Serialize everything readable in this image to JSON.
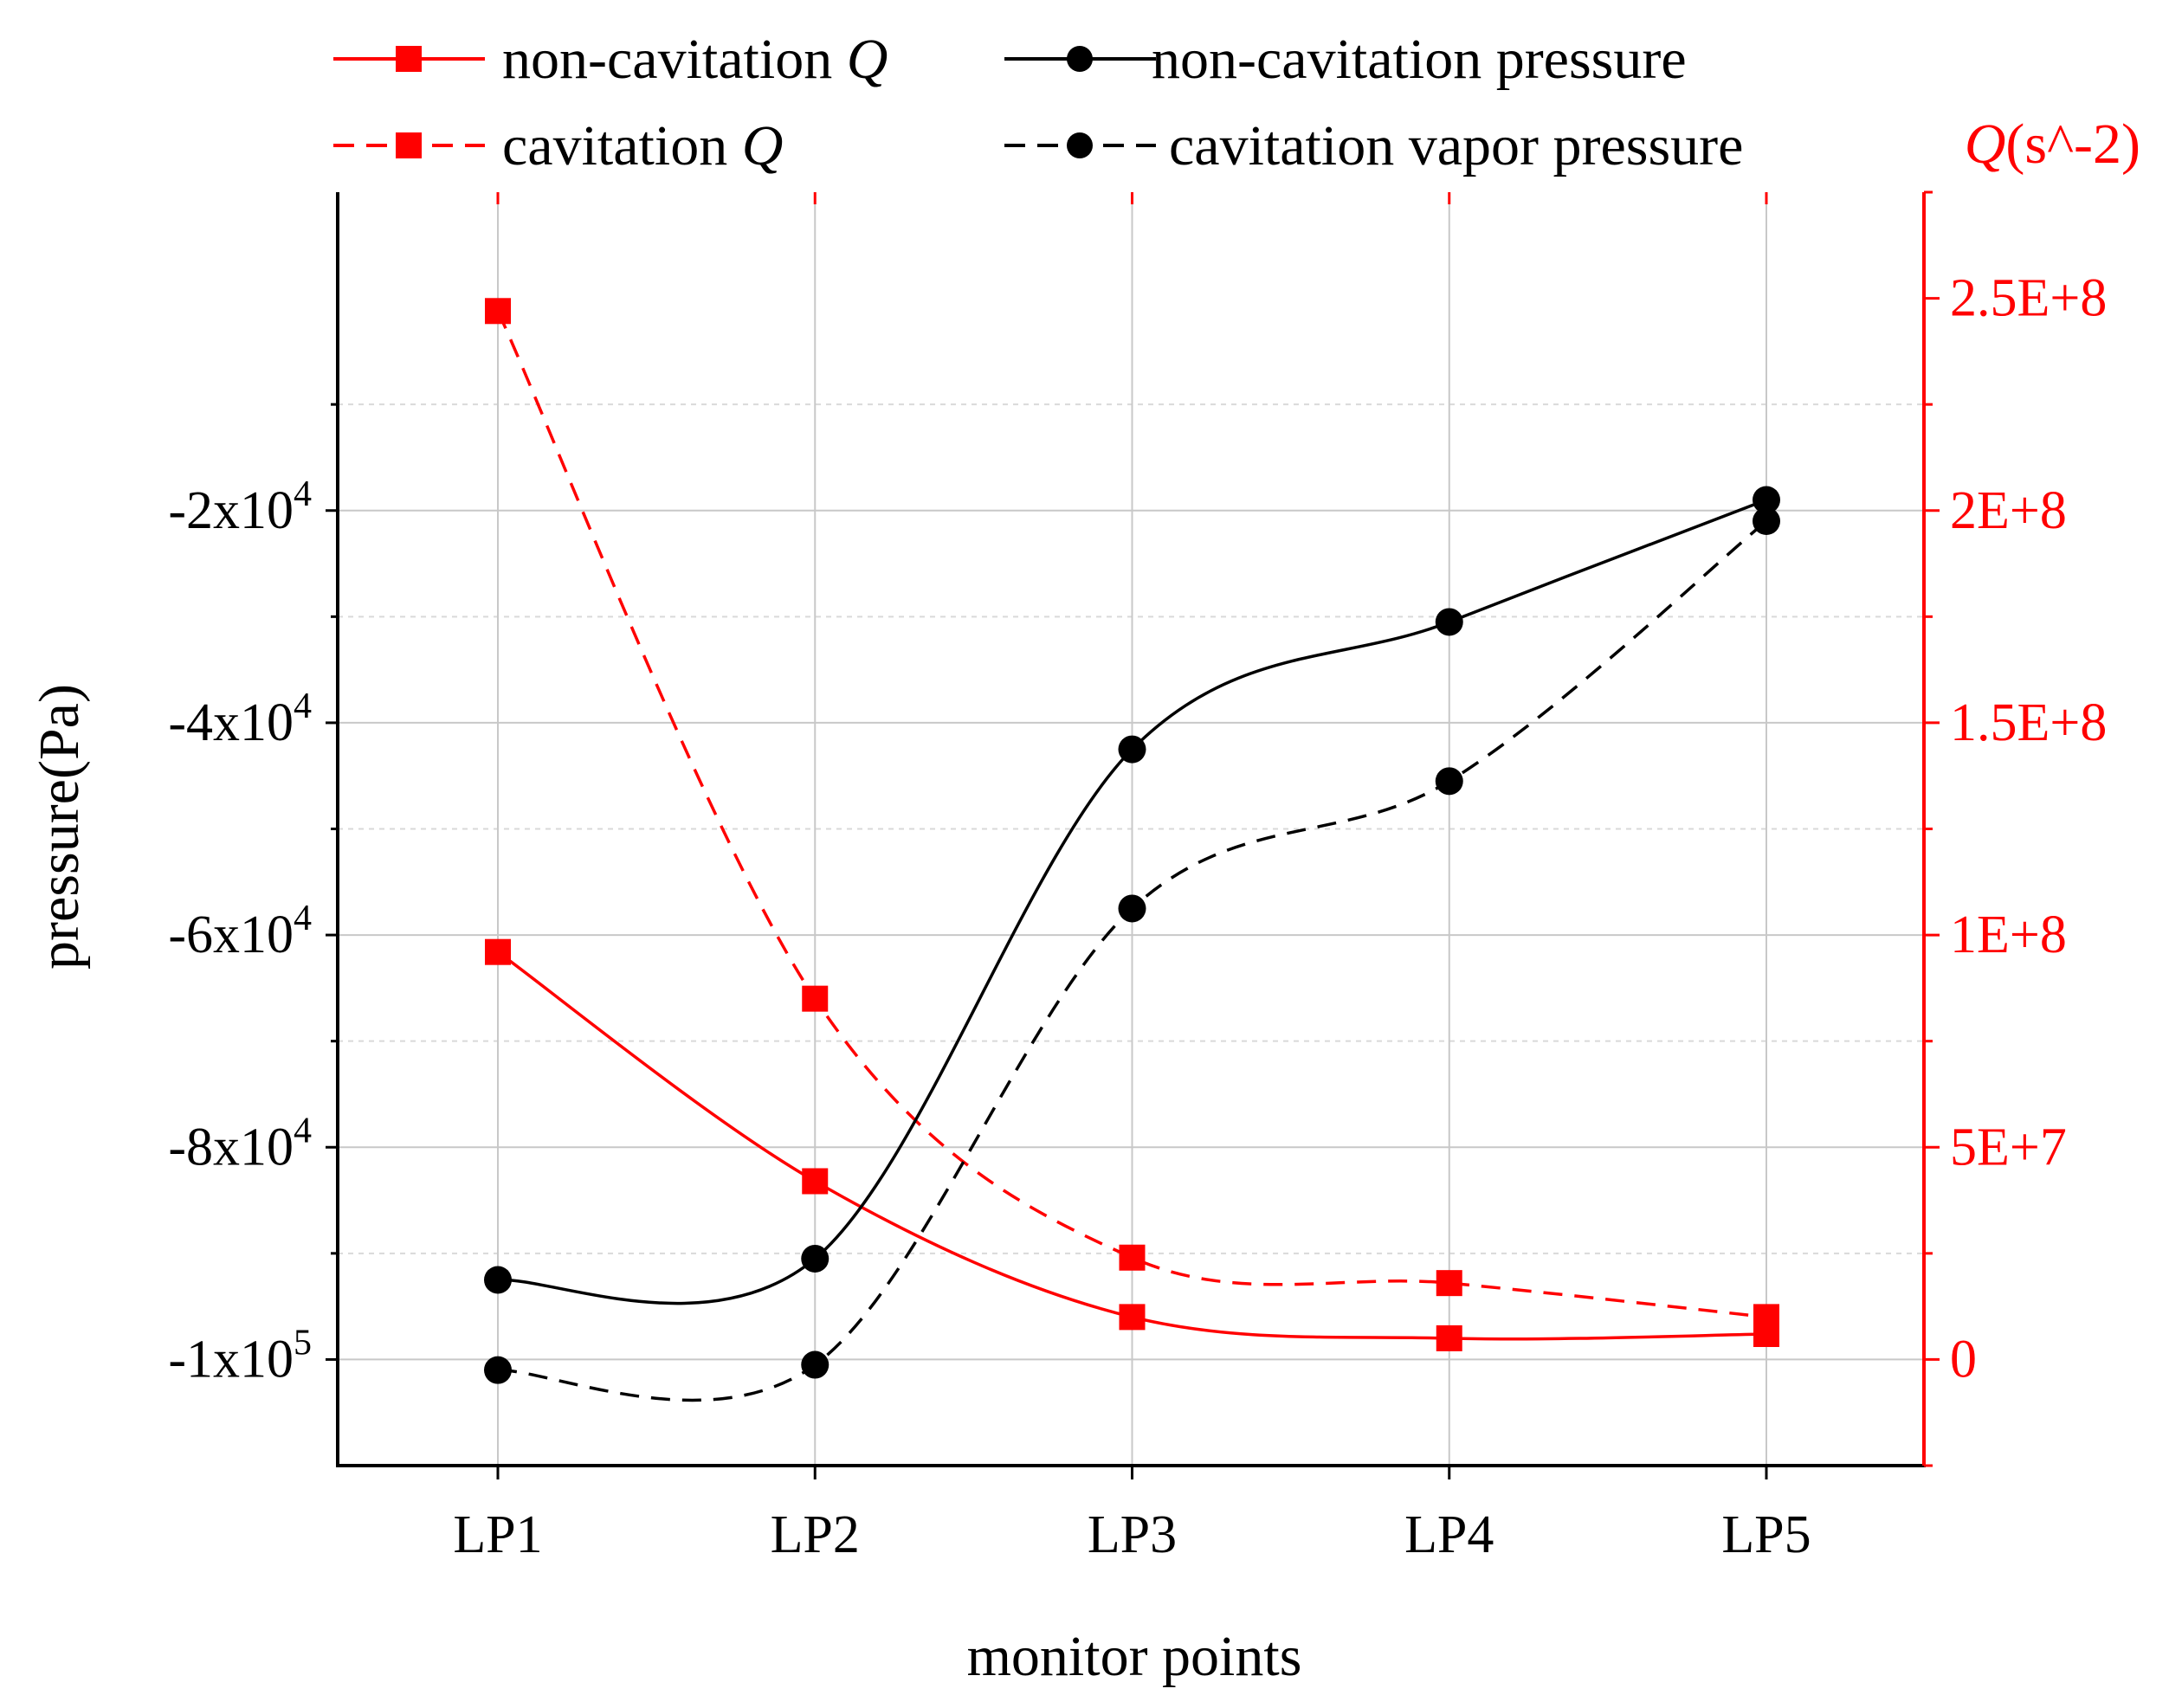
{
  "chart_data": {
    "type": "line",
    "categories": [
      "LP1",
      "LP2",
      "LP3",
      "LP4",
      "LP5"
    ],
    "xlabel": "monitor points",
    "ylabel": "pressure(Pa)",
    "y2label_symbol": "Q",
    "y2label_unit": "(s^-2)",
    "ylim": [
      -110000,
      10000
    ],
    "y2lim": [
      -25000000,
      275000000
    ],
    "grid": true,
    "yticks": [
      {
        "value": -20000,
        "mantissa": "-2x10",
        "exp": "4"
      },
      {
        "value": -40000,
        "mantissa": "-4x10",
        "exp": "4"
      },
      {
        "value": -60000,
        "mantissa": "-6x10",
        "exp": "4"
      },
      {
        "value": -80000,
        "mantissa": "-8x10",
        "exp": "4"
      },
      {
        "value": -100000,
        "mantissa": "-1x10",
        "exp": "5"
      }
    ],
    "y2ticks": [
      {
        "value": 0,
        "label": "0"
      },
      {
        "value": 50000000,
        "label": "5E+7"
      },
      {
        "value": 100000000,
        "label": "1E+8"
      },
      {
        "value": 150000000,
        "label": "1.5E+8"
      },
      {
        "value": 200000000,
        "label": "2E+8"
      },
      {
        "value": 250000000,
        "label": "2.5E+8"
      }
    ],
    "series": [
      {
        "name": "non-cavitation Q",
        "legend_text": "non-cavitation ",
        "legend_symbol": "Q",
        "axis": "right",
        "marker": "square",
        "dash": false,
        "color": "#ff0000",
        "values": [
          96000000,
          42000000,
          10000000,
          5000000,
          6000000
        ]
      },
      {
        "name": "cavitation Q",
        "legend_text": "cavitation ",
        "legend_symbol": "Q",
        "axis": "right",
        "marker": "square",
        "dash": true,
        "color": "#ff0000",
        "values": [
          247000000,
          85000000,
          24000000,
          18000000,
          10000000
        ]
      },
      {
        "name": "non-cavitation pressure",
        "legend_text": "non-cavitation pressure",
        "legend_symbol": "",
        "axis": "left",
        "marker": "circle",
        "dash": false,
        "color": "#000000",
        "values": [
          -92500,
          -90500,
          -42500,
          -30500,
          -19000
        ]
      },
      {
        "name": "cavitation vapor pressure",
        "legend_text": "cavitation vapor pressure",
        "legend_symbol": "",
        "axis": "left",
        "marker": "circle",
        "dash": true,
        "color": "#000000",
        "values": [
          -101000,
          -100500,
          -57500,
          -45500,
          -21000
        ]
      }
    ]
  },
  "colors": {
    "q_axis": "#ff0000",
    "pressure_axis": "#000000",
    "grid": "#c8c8c8",
    "minor_grid": "#d9d9d9"
  }
}
